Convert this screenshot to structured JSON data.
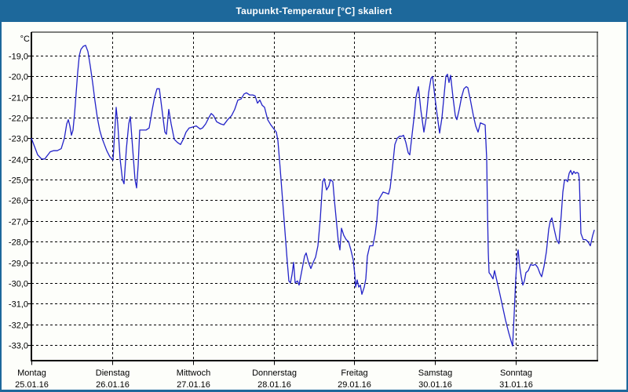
{
  "window": {
    "title": "Taupunkt-Temperatur [°C] skaliert"
  },
  "colors": {
    "titlebar_bg": "#1d689b",
    "window_border": "#1d689b",
    "title_text": "#ffffff",
    "plot_bg": "#fdfefa",
    "grid_color": "#000000",
    "line_color": "#2323c8",
    "label_color": "#000000"
  },
  "chart_data": {
    "type": "line",
    "title": "Taupunkt-Temperatur [°C] skaliert",
    "y_unit_label": "°C",
    "xlabel": "",
    "ylabel": "",
    "grid": "dashed",
    "legend_position": "none",
    "ylim": [
      -33.8,
      -17.9
    ],
    "y_ticks": [
      -19,
      -20,
      -21,
      -22,
      -23,
      -24,
      -25,
      -26,
      -27,
      -28,
      -29,
      -30,
      -31,
      -32,
      -33
    ],
    "y_tick_labels": [
      "-19,0",
      "-20,0",
      "-21,0",
      "-22,0",
      "-23,0",
      "-24,0",
      "-25,0",
      "-26,0",
      "-27,0",
      "-28,0",
      "-29,0",
      "-30,0",
      "-31,0",
      "-32,0",
      "-33,0"
    ],
    "x_range_hours": [
      0,
      168
    ],
    "x_days": [
      {
        "name": "Montag",
        "date": "25.01.16"
      },
      {
        "name": "Dienstag",
        "date": "26.01.16"
      },
      {
        "name": "Mittwoch",
        "date": "27.01.16"
      },
      {
        "name": "Donnerstag",
        "date": "28.01.16"
      },
      {
        "name": "Freitag",
        "date": "29.01.16"
      },
      {
        "name": "Samstag",
        "date": "30.01.16"
      },
      {
        "name": "Sonntag",
        "date": "31.01.16"
      }
    ],
    "series": [
      {
        "name": "Taupunkt-Temperatur",
        "points": [
          [
            0,
            -23.0
          ],
          [
            0.93,
            -23.4
          ],
          [
            1.87,
            -23.8
          ],
          [
            3.03,
            -24.0
          ],
          [
            3.97,
            -24.0
          ],
          [
            4.9,
            -23.8
          ],
          [
            5.6,
            -23.65
          ],
          [
            6.53,
            -23.6
          ],
          [
            7.7,
            -23.6
          ],
          [
            8.87,
            -23.5
          ],
          [
            9.8,
            -23.0
          ],
          [
            10.5,
            -22.3
          ],
          [
            10.97,
            -22.1
          ],
          [
            11.43,
            -22.4
          ],
          [
            11.9,
            -22.85
          ],
          [
            12.37,
            -22.6
          ],
          [
            12.83,
            -21.8
          ],
          [
            13.3,
            -20.8
          ],
          [
            13.77,
            -19.8
          ],
          [
            14.23,
            -19.0
          ],
          [
            14.7,
            -18.7
          ],
          [
            15.4,
            -18.55
          ],
          [
            16.1,
            -18.5
          ],
          [
            16.8,
            -18.8
          ],
          [
            17.5,
            -19.5
          ],
          [
            18.2,
            -20.3
          ],
          [
            18.9,
            -21.2
          ],
          [
            19.6,
            -22.0
          ],
          [
            20.3,
            -22.6
          ],
          [
            21.0,
            -23.0
          ],
          [
            21.7,
            -23.3
          ],
          [
            22.4,
            -23.6
          ],
          [
            23.33,
            -23.9
          ],
          [
            24.27,
            -24.05
          ],
          [
            25.2,
            -21.5
          ],
          [
            25.67,
            -22.3
          ],
          [
            26.37,
            -24.0
          ],
          [
            27.07,
            -25.0
          ],
          [
            27.53,
            -25.2
          ],
          [
            28.23,
            -23.5
          ],
          [
            28.93,
            -22.3
          ],
          [
            29.4,
            -21.95
          ],
          [
            30.1,
            -23.5
          ],
          [
            30.8,
            -25.0
          ],
          [
            31.27,
            -25.4
          ],
          [
            31.73,
            -24.3
          ],
          [
            32.2,
            -22.6
          ],
          [
            33.13,
            -22.6
          ],
          [
            34.07,
            -22.6
          ],
          [
            35.0,
            -22.5
          ],
          [
            35.93,
            -21.6
          ],
          [
            36.63,
            -21.0
          ],
          [
            37.33,
            -20.6
          ],
          [
            38.03,
            -20.6
          ],
          [
            38.73,
            -21.5
          ],
          [
            39.67,
            -22.7
          ],
          [
            40.13,
            -22.8
          ],
          [
            40.83,
            -21.6
          ],
          [
            41.53,
            -22.3
          ],
          [
            42.47,
            -23.05
          ],
          [
            43.4,
            -23.2
          ],
          [
            44.33,
            -23.3
          ],
          [
            45.27,
            -23.0
          ],
          [
            45.97,
            -22.7
          ],
          [
            46.9,
            -22.5
          ],
          [
            48.07,
            -22.45
          ],
          [
            49.0,
            -22.4
          ],
          [
            50.17,
            -22.55
          ],
          [
            50.87,
            -22.5
          ],
          [
            51.8,
            -22.3
          ],
          [
            52.73,
            -22.0
          ],
          [
            53.43,
            -21.8
          ],
          [
            54.13,
            -21.9
          ],
          [
            55.07,
            -22.2
          ],
          [
            56.23,
            -22.3
          ],
          [
            57.17,
            -22.35
          ],
          [
            58.33,
            -22.1
          ],
          [
            59.5,
            -21.9
          ],
          [
            60.43,
            -21.6
          ],
          [
            61.37,
            -21.15
          ],
          [
            62.3,
            -21.1
          ],
          [
            63.23,
            -20.85
          ],
          [
            63.93,
            -20.8
          ],
          [
            64.87,
            -20.9
          ],
          [
            65.8,
            -20.9
          ],
          [
            66.5,
            -20.95
          ],
          [
            67.2,
            -21.3
          ],
          [
            67.9,
            -21.15
          ],
          [
            68.6,
            -21.4
          ],
          [
            69.3,
            -21.5
          ],
          [
            70.23,
            -22.1
          ],
          [
            71.17,
            -22.35
          ],
          [
            72.1,
            -22.55
          ],
          [
            72.8,
            -22.7
          ],
          [
            73.27,
            -23.1
          ],
          [
            73.97,
            -24.5
          ],
          [
            74.67,
            -26.0
          ],
          [
            75.37,
            -27.5
          ],
          [
            76.07,
            -29.0
          ],
          [
            76.53,
            -29.9
          ],
          [
            77.0,
            -30.0
          ],
          [
            77.47,
            -29.6
          ],
          [
            77.93,
            -29.0
          ],
          [
            78.4,
            -30.0
          ],
          [
            79.1,
            -29.9
          ],
          [
            79.57,
            -30.1
          ],
          [
            80.5,
            -29.3
          ],
          [
            81.2,
            -28.7
          ],
          [
            81.67,
            -28.55
          ],
          [
            82.37,
            -29.0
          ],
          [
            83.07,
            -29.3
          ],
          [
            83.77,
            -29.0
          ],
          [
            84.47,
            -28.75
          ],
          [
            85.17,
            -28.2
          ],
          [
            85.87,
            -26.9
          ],
          [
            86.57,
            -25.1
          ],
          [
            87.03,
            -24.95
          ],
          [
            87.73,
            -25.5
          ],
          [
            88.43,
            -25.3
          ],
          [
            88.9,
            -25.0
          ],
          [
            89.6,
            -25.1
          ],
          [
            90.07,
            -26.0
          ],
          [
            90.77,
            -27.2
          ],
          [
            91.23,
            -28.0
          ],
          [
            91.7,
            -28.4
          ],
          [
            92.17,
            -27.35
          ],
          [
            92.87,
            -27.7
          ],
          [
            93.57,
            -27.9
          ],
          [
            94.27,
            -28.0
          ],
          [
            94.97,
            -28.4
          ],
          [
            95.67,
            -28.9
          ],
          [
            96.13,
            -29.6
          ],
          [
            96.37,
            -30.2
          ],
          [
            96.83,
            -29.85
          ],
          [
            97.3,
            -30.2
          ],
          [
            97.77,
            -30.1
          ],
          [
            98.23,
            -30.55
          ],
          [
            98.93,
            -30.2
          ],
          [
            99.4,
            -29.8
          ],
          [
            99.87,
            -28.7
          ],
          [
            100.57,
            -28.2
          ],
          [
            101.5,
            -28.2
          ],
          [
            102.2,
            -27.6
          ],
          [
            102.67,
            -27.0
          ],
          [
            103.13,
            -26.0
          ],
          [
            103.83,
            -25.8
          ],
          [
            104.53,
            -25.6
          ],
          [
            105.47,
            -25.65
          ],
          [
            106.17,
            -25.7
          ],
          [
            106.63,
            -25.4
          ],
          [
            107.33,
            -24.4
          ],
          [
            108.03,
            -23.3
          ],
          [
            108.73,
            -23.0
          ],
          [
            109.43,
            -22.9
          ],
          [
            110.13,
            -22.9
          ],
          [
            110.6,
            -22.85
          ],
          [
            111.3,
            -23.2
          ],
          [
            112.0,
            -23.7
          ],
          [
            112.47,
            -23.8
          ],
          [
            113.17,
            -22.8
          ],
          [
            113.87,
            -21.8
          ],
          [
            114.33,
            -21.0
          ],
          [
            115.03,
            -20.5
          ],
          [
            115.73,
            -21.6
          ],
          [
            116.67,
            -22.7
          ],
          [
            117.37,
            -22.0
          ],
          [
            118.07,
            -20.8
          ],
          [
            118.77,
            -20.1
          ],
          [
            119.23,
            -20.0
          ],
          [
            119.93,
            -21.0
          ],
          [
            120.63,
            -21.9
          ],
          [
            121.33,
            -22.75
          ],
          [
            122.03,
            -22.0
          ],
          [
            122.73,
            -20.8
          ],
          [
            123.2,
            -20.0
          ],
          [
            123.67,
            -19.9
          ],
          [
            124.13,
            -20.3
          ],
          [
            124.6,
            -19.95
          ],
          [
            125.3,
            -21.0
          ],
          [
            126.0,
            -21.9
          ],
          [
            126.47,
            -22.1
          ],
          [
            127.17,
            -21.6
          ],
          [
            127.87,
            -21.0
          ],
          [
            128.57,
            -20.6
          ],
          [
            129.27,
            -20.5
          ],
          [
            129.73,
            -20.55
          ],
          [
            130.43,
            -21.1
          ],
          [
            131.37,
            -21.9
          ],
          [
            132.07,
            -22.4
          ],
          [
            132.77,
            -22.7
          ],
          [
            133.47,
            -22.25
          ],
          [
            134.17,
            -22.3
          ],
          [
            134.87,
            -22.35
          ],
          [
            135.33,
            -24.0
          ],
          [
            135.57,
            -26.5
          ],
          [
            135.8,
            -28.5
          ],
          [
            136.03,
            -29.5
          ],
          [
            136.5,
            -29.6
          ],
          [
            137.2,
            -29.8
          ],
          [
            137.67,
            -29.4
          ],
          [
            138.37,
            -29.9
          ],
          [
            139.07,
            -30.4
          ],
          [
            140.0,
            -31.1
          ],
          [
            140.93,
            -31.8
          ],
          [
            141.87,
            -32.4
          ],
          [
            142.57,
            -32.8
          ],
          [
            143.03,
            -33.05
          ],
          [
            143.5,
            -31.5
          ],
          [
            143.97,
            -29.8
          ],
          [
            144.43,
            -28.6
          ],
          [
            144.67,
            -28.4
          ],
          [
            145.13,
            -29.2
          ],
          [
            145.6,
            -29.7
          ],
          [
            146.07,
            -30.1
          ],
          [
            146.53,
            -29.9
          ],
          [
            147.0,
            -29.5
          ],
          [
            147.7,
            -29.4
          ],
          [
            148.4,
            -29.1
          ],
          [
            149.1,
            -29.15
          ],
          [
            149.8,
            -29.1
          ],
          [
            150.5,
            -29.25
          ],
          [
            151.2,
            -29.55
          ],
          [
            151.67,
            -29.7
          ],
          [
            152.37,
            -29.2
          ],
          [
            153.07,
            -28.5
          ],
          [
            153.77,
            -27.4
          ],
          [
            154.23,
            -27.0
          ],
          [
            154.7,
            -26.85
          ],
          [
            155.4,
            -27.4
          ],
          [
            156.1,
            -27.9
          ],
          [
            156.8,
            -28.1
          ],
          [
            157.5,
            -26.7
          ],
          [
            157.97,
            -25.6
          ],
          [
            158.43,
            -25.05
          ],
          [
            158.9,
            -25.0
          ],
          [
            159.37,
            -25.1
          ],
          [
            159.83,
            -24.7
          ],
          [
            160.3,
            -24.55
          ],
          [
            160.77,
            -24.75
          ],
          [
            161.23,
            -24.6
          ],
          [
            161.7,
            -24.7
          ],
          [
            162.17,
            -24.65
          ],
          [
            162.63,
            -24.7
          ],
          [
            162.87,
            -25.0
          ],
          [
            163.33,
            -27.6
          ],
          [
            164.03,
            -27.9
          ],
          [
            164.73,
            -27.9
          ],
          [
            165.43,
            -28.0
          ],
          [
            166.13,
            -28.2
          ],
          [
            166.83,
            -27.7
          ],
          [
            167.3,
            -27.45
          ]
        ]
      }
    ]
  }
}
